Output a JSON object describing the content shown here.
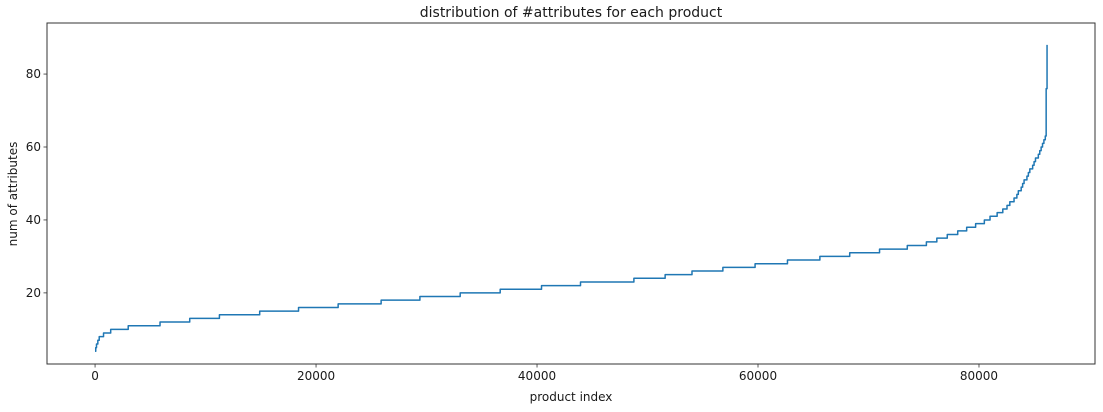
{
  "chart_data": {
    "type": "line",
    "style": "step-monotonic-sorted-curve",
    "title": "distribution of #attributes for each product",
    "xlabel": "product index",
    "ylabel": "num of attributes",
    "x_ticks": [
      0,
      20000,
      40000,
      60000,
      80000
    ],
    "y_ticks": [
      20,
      40,
      60,
      80
    ],
    "xlim": [
      -4350,
      90500
    ],
    "ylim": [
      0.5,
      94
    ],
    "grid": false,
    "legend": null,
    "background_color": "#ffffff",
    "spine_color": "#333333",
    "text_color": "#1a1a1a",
    "line_color": "#1f77b4",
    "line_width": 1.5,
    "description": "Products sorted ascending by number of attributes; about 86000 products; values rise from ~4 to 88 with a steep spike at the right end.",
    "series": [
      {
        "name": "num of attributes (sorted ascending)",
        "x": [
          0,
          60,
          130,
          250,
          500,
          900,
          1800,
          3000,
          4800,
          7500,
          9500,
          12200,
          14900,
          16700,
          20000,
          24000,
          29400,
          34800,
          40000,
          45700,
          49300,
          54700,
          60000,
          65600,
          71000,
          74700,
          77400,
          80100,
          81900,
          83300,
          84600,
          85500,
          86000,
          86160
        ],
        "y": [
          4,
          5,
          6,
          7,
          8,
          9,
          10,
          10.5,
          11.2,
          12,
          13,
          13.8,
          14.5,
          15,
          16,
          17,
          18.5,
          20,
          21.4,
          23,
          23.6,
          25.8,
          27.6,
          29.5,
          31.5,
          33,
          35.8,
          39,
          42,
          46,
          53.7,
          59,
          63,
          88
        ]
      }
    ]
  }
}
